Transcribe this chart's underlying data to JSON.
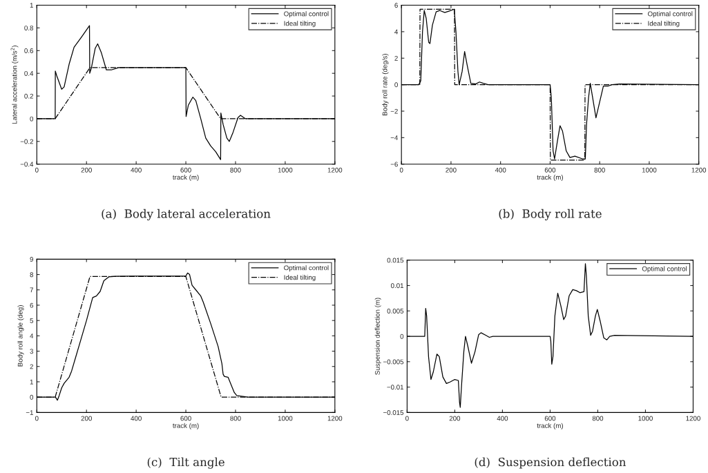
{
  "chart_data": [
    {
      "type": "line",
      "xlabel": "track (m)",
      "ylabel": "Lateral acceleration (m/s$^{2}$)",
      "annotations": [
        "(a)  Body lateral acceleration"
      ],
      "xlim": [
        0,
        1200
      ],
      "ylim": [
        -0.4,
        1
      ],
      "xticks": [
        0,
        200,
        400,
        600,
        800,
        1000,
        1200
      ],
      "yticks": [
        {
          "value": -0.4,
          "label": "−0.4"
        },
        {
          "value": -0.2,
          "label": "−0.2"
        },
        0,
        0.2,
        0.4,
        0.6,
        0.8,
        1
      ],
      "legend": "top right",
      "grid": false,
      "series": [
        {
          "name": "Optimal control",
          "color": "#000000",
          "line_style": "solid",
          "x": [
            0,
            74,
            74.5,
            80,
            100,
            110,
            130,
            150,
            180,
            212,
            213,
            220,
            235,
            245,
            260,
            280,
            300,
            330,
            600,
            601,
            610,
            628,
            640,
            660,
            680,
            700,
            720,
            740,
            741,
            750,
            765,
            775,
            790,
            810,
            820,
            840,
            1200
          ],
          "values": [
            0,
            0,
            0.42,
            0.38,
            0.26,
            0.28,
            0.48,
            0.63,
            0.72,
            0.82,
            0.4,
            0.45,
            0.62,
            0.66,
            0.58,
            0.43,
            0.43,
            0.45,
            0.45,
            0.02,
            0.12,
            0.19,
            0.16,
            0.0,
            -0.17,
            -0.24,
            -0.29,
            -0.36,
            0.05,
            -0.05,
            -0.17,
            -0.2,
            -0.12,
            0.01,
            0.03,
            0.0,
            0
          ]
        },
        {
          "name": "Ideal tilting",
          "color": "#000000",
          "line_style": "dashdot",
          "x": [
            0,
            74,
            214,
            600,
            740,
            1200
          ],
          "values": [
            0,
            0,
            0.45,
            0.45,
            0,
            0
          ]
        }
      ]
    },
    {
      "type": "line",
      "xlabel": "track (m)",
      "ylabel": "Body roll rate (deg/s)",
      "annotations": [
        "(b)  Body roll rate"
      ],
      "xlim": [
        0,
        1200
      ],
      "ylim": [
        -6,
        6
      ],
      "xticks": [
        0,
        200,
        400,
        600,
        800,
        1000,
        1200
      ],
      "yticks": [
        {
          "value": -6,
          "label": "−6"
        },
        {
          "value": -4,
          "label": "−4"
        },
        {
          "value": -2,
          "label": "−2"
        },
        0,
        2,
        4,
        6
      ],
      "legend": "top right",
      "grid": false,
      "series": [
        {
          "name": "Optimal control",
          "color": "#000000",
          "line_style": "solid",
          "x": [
            0,
            70,
            78,
            85,
            92,
            100,
            110,
            115,
            125,
            140,
            155,
            175,
            200,
            213,
            220,
            228,
            233,
            245,
            255,
            265,
            280,
            300,
            315,
            330,
            350,
            600,
            605,
            612,
            618,
            630,
            640,
            650,
            665,
            680,
            700,
            730,
            742,
            747,
            755,
            762,
            770,
            785,
            800,
            815,
            835,
            850,
            880,
            1200
          ],
          "values": [
            0,
            0,
            0.3,
            4,
            5.6,
            5.0,
            3.2,
            3.1,
            4.5,
            5.5,
            5.6,
            5.45,
            5.6,
            5.7,
            4,
            1,
            0,
            1.0,
            2.5,
            1.5,
            0.1,
            0.05,
            0.2,
            0.1,
            0,
            0,
            -1,
            -5,
            -5.6,
            -4.2,
            -3.1,
            -3.5,
            -5,
            -5.5,
            -5.4,
            -5.6,
            -5.6,
            -3,
            -1,
            0.1,
            -0.8,
            -2.5,
            -1.3,
            -0.1,
            -0.1,
            0,
            0.05,
            0
          ]
        },
        {
          "name": "Ideal tilting",
          "color": "#000000",
          "line_style": "dashdot",
          "x": [
            0,
            74,
            75,
            214,
            215,
            600,
            601,
            740,
            741,
            1200
          ],
          "values": [
            0,
            0,
            5.7,
            5.7,
            0,
            0,
            -5.7,
            -5.7,
            0,
            0
          ]
        }
      ]
    },
    {
      "type": "line",
      "xlabel": "track (m)",
      "ylabel": "Body roll angle (deg)",
      "annotations": [
        "(c)  Tilt angle"
      ],
      "xlim": [
        0,
        1200
      ],
      "ylim": [
        -1,
        9
      ],
      "xticks": [
        0,
        200,
        400,
        600,
        800,
        1000,
        1200
      ],
      "yticks": [
        {
          "value": -1,
          "label": "−1"
        },
        0,
        1,
        2,
        3,
        4,
        5,
        6,
        7,
        8,
        9
      ],
      "legend": "top right",
      "grid": false,
      "series": [
        {
          "name": "Optimal control",
          "color": "#000000",
          "line_style": "solid",
          "x": [
            0,
            75,
            83,
            90,
            100,
            110,
            130,
            140,
            160,
            180,
            200,
            215,
            225,
            240,
            255,
            270,
            290,
            320,
            400,
            600,
            607,
            615,
            625,
            640,
            660,
            670,
            700,
            730,
            745,
            750,
            755,
            770,
            780,
            795,
            805,
            830,
            850,
            1200
          ],
          "values": [
            0,
            0,
            -0.2,
            0.1,
            0.6,
            0.9,
            1.3,
            1.7,
            2.8,
            3.9,
            5.0,
            5.9,
            6.5,
            6.6,
            6.9,
            7.6,
            7.85,
            7.88,
            7.9,
            7.9,
            8.1,
            8.0,
            7.3,
            7.0,
            6.6,
            6.2,
            4.8,
            3.3,
            2.2,
            1.5,
            1.35,
            1.3,
            0.9,
            0.3,
            0.1,
            0.05,
            0,
            0
          ]
        },
        {
          "name": "Ideal tilting",
          "color": "#000000",
          "line_style": "dashdot",
          "x": [
            0,
            74,
            214,
            600,
            742,
            1200
          ],
          "values": [
            0,
            0,
            7.87,
            7.87,
            0,
            0
          ]
        }
      ]
    },
    {
      "type": "line",
      "xlabel": "track (m)",
      "ylabel": "Suspension deflection (m)",
      "annotations": [
        "(d)  Suspension deflection"
      ],
      "xlim": [
        0,
        1200
      ],
      "ylim": [
        -0.015,
        0.015
      ],
      "xticks": [
        0,
        200,
        400,
        600,
        800,
        1000,
        1200
      ],
      "yticks": [
        {
          "value": -0.015,
          "label": "−0.015"
        },
        {
          "value": -0.01,
          "label": "−0.01"
        },
        {
          "value": -0.005,
          "label": "−0.005"
        },
        0,
        0.005,
        0.01,
        0.015
      ],
      "legend": "top right",
      "grid": false,
      "series": [
        {
          "name": "Optimal control",
          "color": "#000000",
          "line_style": "solid",
          "x": [
            0,
            74,
            78,
            82,
            90,
            100,
            110,
            125,
            135,
            150,
            165,
            180,
            200,
            215,
            220,
            223,
            228,
            238,
            245,
            255,
            270,
            285,
            300,
            310,
            330,
            345,
            360,
            600,
            603,
            607,
            612,
            620,
            632,
            645,
            657,
            665,
            680,
            695,
            710,
            725,
            742,
            748,
            752,
            760,
            770,
            778,
            790,
            798,
            810,
            825,
            838,
            850,
            870,
            1200
          ],
          "values": [
            0,
            0,
            0.0055,
            0.004,
            -0.004,
            -0.0085,
            -0.007,
            -0.0035,
            -0.004,
            -0.008,
            -0.0093,
            -0.009,
            -0.0085,
            -0.0087,
            -0.013,
            -0.014,
            -0.01,
            -0.003,
            0,
            -0.002,
            -0.0053,
            -0.003,
            0.0003,
            0.0007,
            0.0002,
            -0.0002,
            0,
            0,
            -0.001,
            -0.0055,
            -0.004,
            0.004,
            0.0085,
            0.006,
            0.0033,
            0.004,
            0.008,
            0.0092,
            0.009,
            0.0086,
            0.0088,
            0.0143,
            0.012,
            0.004,
            0.0002,
            0.001,
            0.004,
            0.0053,
            0.003,
            -0.0003,
            -0.0007,
            0,
            0.0002,
            0
          ]
        }
      ]
    }
  ]
}
